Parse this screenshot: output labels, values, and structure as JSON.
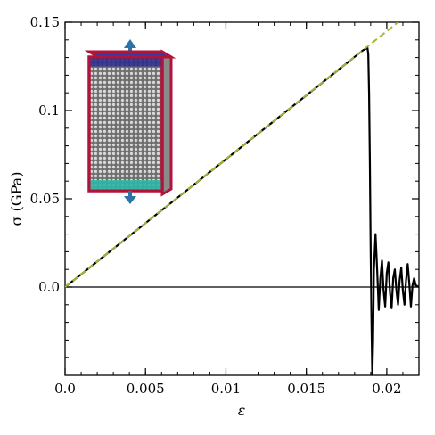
{
  "chart_data": {
    "type": "line",
    "title": "",
    "xlabel": "ε",
    "ylabel": "σ (GPa)",
    "xlim": [
      0.0,
      0.022
    ],
    "ylim": [
      -0.05,
      0.15
    ],
    "xticks": [
      0.0,
      0.005,
      0.01,
      0.015,
      0.02
    ],
    "xtick_labels": [
      "0.0",
      "0.005",
      "0.01",
      "0.015",
      "0.02"
    ],
    "yticks": [
      0.0,
      0.05,
      0.1,
      0.15
    ],
    "ytick_labels": [
      "0.0",
      "0.05",
      "0.1",
      "0.15"
    ],
    "grid": false,
    "legend": "none",
    "reference_line_y": 0.0,
    "series": [
      {
        "style": "solid",
        "color": "#000000",
        "x": [
          0.0,
          0.005,
          0.01,
          0.015,
          0.018,
          0.0185,
          0.0188,
          0.01885,
          0.0189,
          0.01895,
          0.019,
          0.01905,
          0.0191,
          0.01915,
          0.0192,
          0.0193,
          0.0194,
          0.0195,
          0.0196,
          0.0197,
          0.0198,
          0.0199,
          0.02,
          0.0201,
          0.0202,
          0.0203,
          0.0204,
          0.0205,
          0.0206,
          0.0207,
          0.0208,
          0.0209,
          0.021,
          0.0211,
          0.0212,
          0.0213,
          0.0214,
          0.0215,
          0.0216,
          0.0217,
          0.0218,
          0.022
        ],
        "y": [
          0.0,
          0.0362,
          0.0724,
          0.1086,
          0.1304,
          0.134,
          0.1355,
          0.132,
          0.11,
          0.07,
          0.02,
          -0.02,
          -0.05,
          -0.03,
          0.01,
          0.03,
          0.01,
          -0.013,
          0.005,
          0.015,
          -0.002,
          -0.011,
          0.008,
          0.014,
          -0.003,
          -0.012,
          0.005,
          0.01,
          -0.002,
          -0.01,
          0.004,
          0.011,
          -0.002,
          -0.01,
          0.004,
          0.013,
          0.002,
          -0.011,
          0.001,
          0.005,
          0.001,
          0.0
        ]
      },
      {
        "style": "dashed",
        "color": "#a3b82e",
        "x": [
          0.0,
          0.0207
        ],
        "y": [
          0.0,
          0.15
        ]
      }
    ],
    "inset": {
      "content": "molecular dynamics sample block under uniaxial tension",
      "arrow_color": "#2a74a8",
      "frame_color": "#b0143a",
      "top_layer_color": "#2c2c8c",
      "bottom_layer_color": "#2fb5a5"
    }
  }
}
